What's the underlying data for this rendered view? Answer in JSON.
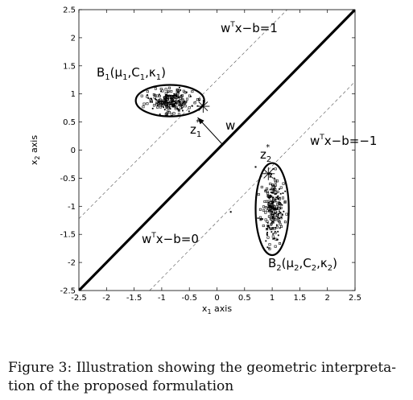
{
  "chart_data": {
    "type": "scatter",
    "xlabel": "x1 axis",
    "ylabel": "x2 axis",
    "xlim": [
      -2.5,
      2.5
    ],
    "ylim": [
      -2.5,
      2.5
    ],
    "xticks": [
      "-2.5",
      "-2",
      "-1.5",
      "-1",
      "-0.5",
      "0",
      "0.5",
      "1",
      "1.5",
      "2",
      "2.5"
    ],
    "yticks": [
      "-2.5",
      "-2",
      "-1.5",
      "-1",
      "-0.5",
      "0",
      "0.5",
      "1",
      "1.5",
      "2",
      "2.5"
    ],
    "grid": false,
    "lines": [
      {
        "equation": "w^T x - b = 0",
        "p1": [
          -2.5,
          -2.5
        ],
        "p2": [
          2.5,
          2.5
        ],
        "style": "solid-thick"
      },
      {
        "equation": "w^T x - b = 1",
        "p1": [
          -2.5,
          -1.22
        ],
        "p2": [
          1.27,
          2.5
        ],
        "style": "dashed"
      },
      {
        "equation": "w^T x - b = -1",
        "p1": [
          -1.22,
          -2.5
        ],
        "p2": [
          2.5,
          1.22
        ],
        "style": "dashed"
      }
    ],
    "ellipses": [
      {
        "label": "B1",
        "center": [
          -0.85,
          0.88
        ],
        "rx": 0.62,
        "ry": 0.28
      },
      {
        "label": "B2",
        "center": [
          1.0,
          -1.05
        ],
        "rx": 0.3,
        "ry": 0.82
      }
    ],
    "clusters": [
      {
        "label": "B1",
        "center": [
          -0.85,
          0.88
        ],
        "sx": 0.2,
        "sy": 0.1,
        "count": 230
      },
      {
        "label": "B2",
        "center": [
          1.0,
          -1.05
        ],
        "sx": 0.1,
        "sy": 0.3,
        "count": 230
      }
    ],
    "stray_points": [
      [
        0.25,
        -1.1
      ],
      [
        0.7,
        -0.3
      ]
    ],
    "key_points": [
      {
        "label": "z1",
        "x": -0.25,
        "y": 0.78
      },
      {
        "label": "z2",
        "x": 0.93,
        "y": -0.42
      }
    ],
    "normal_vector": {
      "label": "w",
      "from": [
        0.1,
        0.1
      ],
      "to": [
        -0.35,
        0.58
      ]
    },
    "annotations": {
      "line_pos": {
        "main": "w",
        "sup": "T",
        "rest": "x−b=1"
      },
      "line_neg": {
        "main": "w",
        "sup": "T",
        "rest": "x−b=−1"
      },
      "line_zero": {
        "main": "w",
        "sup": "T",
        "rest": "x−b=0"
      },
      "b1": {
        "main": "B",
        "sub": "1",
        "args": [
          "(μ",
          "1",
          ",C",
          "1",
          ",κ",
          "1",
          ")"
        ]
      },
      "b2": {
        "main": "B",
        "sub": "2",
        "args": [
          "(μ",
          "2",
          ",C",
          "2",
          ",κ",
          "2",
          ")"
        ]
      },
      "z1": {
        "main": "z",
        "sub": "1",
        "sup": "*"
      },
      "z2": {
        "main": "z",
        "sub": "2",
        "sup": "*"
      },
      "w": "w"
    },
    "axis_labels": {
      "x_main": "x",
      "x_sub": "1",
      "x_rest": " axis",
      "y_main": "x",
      "y_sub": "2",
      "y_rest": " axis"
    }
  },
  "caption": {
    "line1": "Figure 3: Illustration showing the geometric interpreta-",
    "line2": "tion of the proposed formulation"
  }
}
